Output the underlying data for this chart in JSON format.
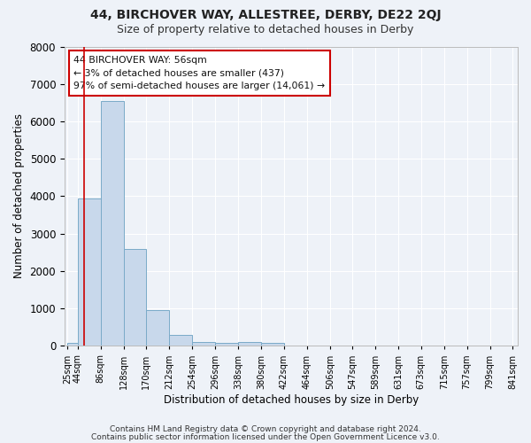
{
  "title": "44, BIRCHOVER WAY, ALLESTREE, DERBY, DE22 2QJ",
  "subtitle": "Size of property relative to detached houses in Derby",
  "xlabel": "Distribution of detached houses by size in Derby",
  "ylabel": "Number of detached properties",
  "bar_color": "#c8d8eb",
  "bar_edge_color": "#7aaac8",
  "bar_left_edges": [
    25,
    44,
    86,
    128,
    170,
    212,
    254,
    296,
    338,
    380,
    422,
    464,
    506,
    547,
    589,
    631,
    673,
    715,
    757,
    799
  ],
  "bar_heights": [
    80,
    3950,
    6550,
    2600,
    950,
    300,
    115,
    90,
    100,
    80,
    0,
    0,
    0,
    0,
    0,
    0,
    0,
    0,
    0,
    0
  ],
  "bar_widths": [
    19,
    42,
    42,
    42,
    42,
    42,
    42,
    42,
    42,
    42,
    42,
    42,
    42,
    41,
    42,
    42,
    42,
    42,
    42,
    42
  ],
  "xtick_labels": [
    "25sqm",
    "44sqm",
    "86sqm",
    "128sqm",
    "170sqm",
    "212sqm",
    "254sqm",
    "296sqm",
    "338sqm",
    "380sqm",
    "422sqm",
    "464sqm",
    "506sqm",
    "547sqm",
    "589sqm",
    "631sqm",
    "673sqm",
    "715sqm",
    "757sqm",
    "799sqm",
    "841sqm"
  ],
  "xtick_positions": [
    25,
    44,
    86,
    128,
    170,
    212,
    254,
    296,
    338,
    380,
    422,
    464,
    506,
    547,
    589,
    631,
    673,
    715,
    757,
    799,
    841
  ],
  "ylim": [
    0,
    8000
  ],
  "yticks": [
    0,
    1000,
    2000,
    3000,
    4000,
    5000,
    6000,
    7000,
    8000
  ],
  "red_line_x": 56,
  "annotation_line1": "44 BIRCHOVER WAY: 56sqm",
  "annotation_line2": "← 3% of detached houses are smaller (437)",
  "annotation_line3": "97% of semi-detached houses are larger (14,061) →",
  "annotation_box_color": "#ffffff",
  "annotation_box_edge_color": "#cc0000",
  "footnote1": "Contains HM Land Registry data © Crown copyright and database right 2024.",
  "footnote2": "Contains public sector information licensed under the Open Government Licence v3.0.",
  "background_color": "#eef2f8",
  "grid_color": "#ffffff",
  "xlim": [
    20,
    850
  ]
}
